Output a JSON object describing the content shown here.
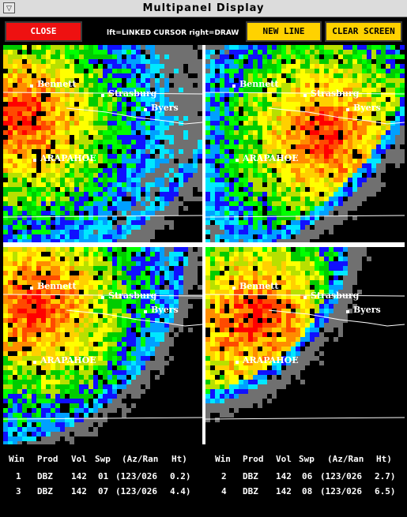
{
  "window": {
    "title": "Multipanel Display",
    "menu_glyph": "▽"
  },
  "toolbar": {
    "close_label": "CLOSE",
    "hint": "lft=LINKED CURSOR  right=DRAW",
    "new_line_label": "NEW LINE",
    "clear_screen_label": "CLEAR SCREEN"
  },
  "colors": {
    "close": "#ee1111",
    "buttons": "#ffd200"
  },
  "towns": [
    "Bennett",
    "Strasburg",
    "Byers",
    "ARAPAHOE"
  ],
  "table": {
    "headers": [
      "Win",
      "Prod",
      "Vol",
      "Swp",
      "(Az/Ran",
      "Ht)"
    ],
    "rows": [
      {
        "win": "1",
        "prod": "DBZ",
        "vol": "142",
        "swp": "01",
        "azran": "(123/026",
        "ht": "0.2)"
      },
      {
        "win": "2",
        "prod": "DBZ",
        "vol": "142",
        "swp": "06",
        "azran": "(123/026",
        "ht": "2.7)"
      },
      {
        "win": "3",
        "prod": "DBZ",
        "vol": "142",
        "swp": "07",
        "azran": "(123/026",
        "ht": "4.4)"
      },
      {
        "win": "4",
        "prod": "DBZ",
        "vol": "142",
        "swp": "08",
        "azran": "(123/026",
        "ht": "6.5)"
      }
    ]
  }
}
